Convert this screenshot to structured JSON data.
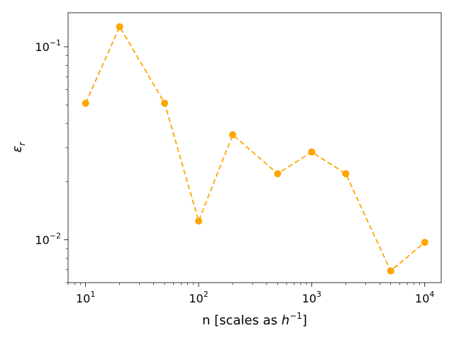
{
  "chart_data": {
    "type": "line",
    "xscale": "log",
    "yscale": "log",
    "xlim": [
      7,
      14000
    ],
    "ylim": [
      0.006,
      0.15
    ],
    "grid": false,
    "xlabel_prefix": "n  [scales as ",
    "xlabel_var": "h",
    "xlabel_exp": "−1",
    "xlabel_suffix": "]",
    "ylabel_var": "ε",
    "ylabel_sub": "r",
    "x_ticks": [
      {
        "value": 10,
        "base": "10",
        "exp": "1"
      },
      {
        "value": 100,
        "base": "10",
        "exp": "2"
      },
      {
        "value": 1000,
        "base": "10",
        "exp": "3"
      },
      {
        "value": 10000,
        "base": "10",
        "exp": "4"
      }
    ],
    "y_ticks": [
      {
        "value": 0.01,
        "base": "10",
        "exp": "−2"
      },
      {
        "value": 0.1,
        "base": "10",
        "exp": "−1"
      }
    ],
    "series": [
      {
        "color": "#FFA500",
        "linestyle": "dashed",
        "marker": "circle",
        "x": [
          10,
          20,
          50,
          100,
          200,
          500,
          1000,
          2000,
          5000,
          10000
        ],
        "y": [
          0.051,
          0.127,
          0.051,
          0.0125,
          0.035,
          0.022,
          0.0285,
          0.022,
          0.0069,
          0.0097
        ]
      }
    ]
  }
}
